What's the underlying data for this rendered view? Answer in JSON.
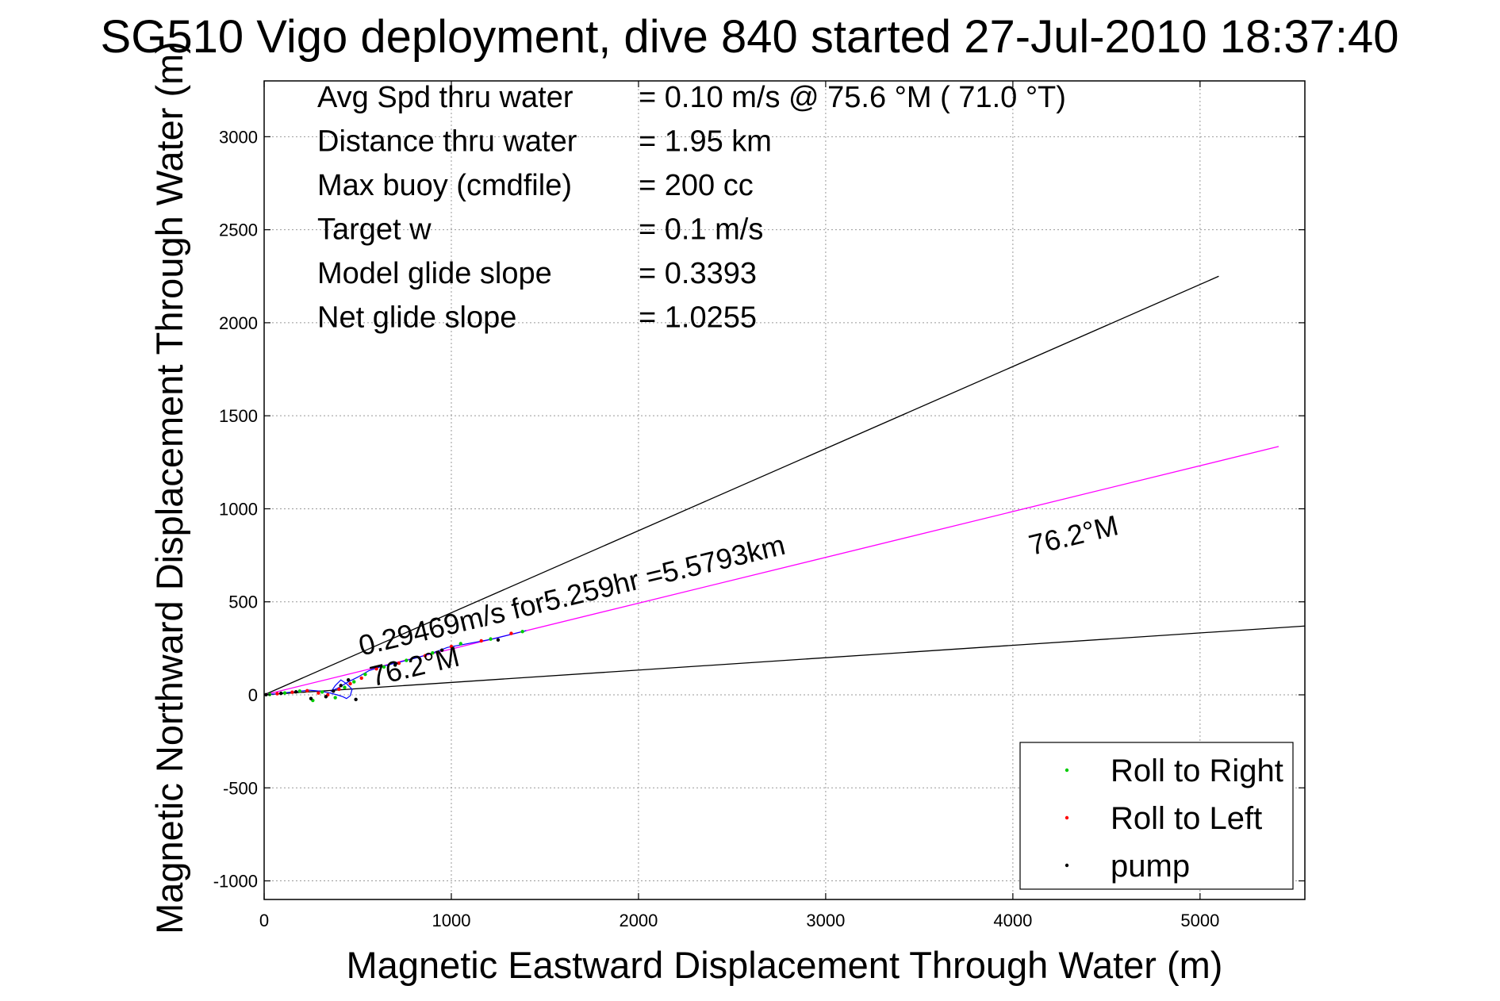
{
  "chart_data": {
    "type": "line",
    "title": "SG510 Vigo deployment, dive 840 started 27-Jul-2010 18:37:40",
    "xlabel": "Magnetic Eastward Displacement Through Water (m)",
    "ylabel": "Magnetic Northward Displacement Through Water (m)",
    "xlim": [
      0,
      5560
    ],
    "ylim": [
      -1100,
      3300
    ],
    "xticks": [
      0,
      1000,
      2000,
      3000,
      4000,
      5000
    ],
    "yticks": [
      -1000,
      -500,
      0,
      500,
      1000,
      1500,
      2000,
      2500,
      3000
    ],
    "grid": true,
    "stats": [
      {
        "label": "Avg Spd thru water",
        "value": "=  0.10 m/s @  75.6 °M ( 71.0 °T)"
      },
      {
        "label": "Distance thru water",
        "value": "=  1.95 km"
      },
      {
        "label": "Max buoy (cmdfile)",
        "value": "= 200 cc"
      },
      {
        "label": "Target w",
        "value": "= 0.1 m/s"
      },
      {
        "label": "Model glide slope",
        "value": "= 0.3393"
      },
      {
        "label": "Net glide slope",
        "value": "= 1.0255"
      }
    ],
    "lines": [
      {
        "name": "upper bound",
        "color": "#000000",
        "x": [
          0,
          5100
        ],
        "y": [
          0,
          2250
        ]
      },
      {
        "name": "heading",
        "color": "#ff00ff",
        "x": [
          0,
          5420
        ],
        "y": [
          0,
          1335
        ]
      },
      {
        "name": "lower bound",
        "color": "#000000",
        "x": [
          0,
          5560
        ],
        "y": [
          0,
          370
        ]
      }
    ],
    "track": {
      "color": "#0000ff",
      "x": [
        0,
        60,
        120,
        180,
        240,
        300,
        350,
        390,
        420,
        440,
        460,
        470,
        440,
        410,
        380,
        360,
        400,
        450,
        500,
        560,
        620,
        680,
        740,
        820,
        900,
        980,
        1060,
        1140,
        1220,
        1300,
        1400
      ],
      "y": [
        0,
        5,
        12,
        18,
        25,
        20,
        10,
        0,
        -10,
        -20,
        -5,
        30,
        60,
        80,
        50,
        20,
        40,
        70,
        95,
        130,
        150,
        165,
        180,
        200,
        225,
        255,
        270,
        285,
        300,
        320,
        345
      ]
    },
    "roll_right": {
      "color": "#00cc00",
      "x": [
        30,
        110,
        190,
        260,
        310,
        380,
        430,
        480,
        540,
        640,
        760,
        900,
        1050,
        1210,
        1380
      ],
      "y": [
        2,
        10,
        20,
        -30,
        15,
        -15,
        40,
        70,
        110,
        150,
        185,
        225,
        275,
        300,
        340
      ]
    },
    "roll_left": {
      "color": "#ff0000",
      "x": [
        70,
        150,
        230,
        290,
        340,
        400,
        460,
        520,
        600,
        720,
        860,
        1000,
        1160,
        1320
      ],
      "y": [
        6,
        14,
        22,
        10,
        0,
        30,
        60,
        90,
        140,
        170,
        210,
        260,
        290,
        330
      ]
    },
    "pump": {
      "color": "#000000",
      "x": [
        10,
        90,
        170,
        250,
        330,
        370,
        410,
        450,
        490,
        700,
        950,
        1250
      ],
      "y": [
        1,
        8,
        16,
        -20,
        -10,
        20,
        50,
        80,
        -25,
        160,
        240,
        295
      ]
    },
    "annotations": [
      {
        "text": "0.29469m/s for5.259hr =5.5793km",
        "x": 520,
        "y": 210,
        "angle": -13.5
      },
      {
        "text": "76.2°M",
        "x": 580,
        "y": 45,
        "angle": -13.5
      },
      {
        "text": "76.2°M",
        "x": 4100,
        "y": 750,
        "angle": -13.5
      }
    ],
    "legend": {
      "position": "bottom-right",
      "entries": [
        {
          "label": "Roll to Right",
          "color": "#00cc00"
        },
        {
          "label": "Roll to Left",
          "color": "#ff0000"
        },
        {
          "label": "pump",
          "color": "#000000"
        }
      ]
    }
  }
}
